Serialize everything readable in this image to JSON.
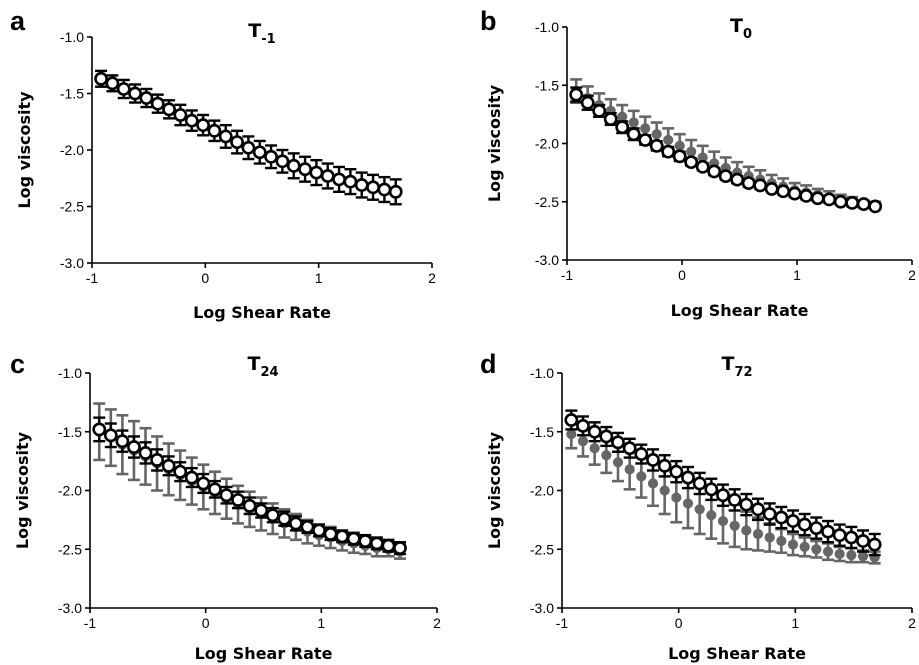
{
  "chart_data": [
    {
      "panel": "a",
      "type": "scatter",
      "title_main": "T",
      "title_sub": "-1",
      "xlabel": "Log Shear Rate",
      "ylabel": "Log viscosity",
      "xlim": [
        -1,
        2
      ],
      "ylim": [
        -3.0,
        -1.0
      ],
      "xticks": [
        "-1",
        "0",
        "1",
        "2"
      ],
      "yticks": [
        "-1.0",
        "-1.5",
        "-2.0",
        "-2.5",
        "-3.0"
      ],
      "x": [
        -0.92,
        -0.82,
        -0.72,
        -0.62,
        -0.52,
        -0.42,
        -0.32,
        -0.22,
        -0.12,
        -0.02,
        0.08,
        0.18,
        0.28,
        0.38,
        0.48,
        0.58,
        0.68,
        0.78,
        0.88,
        0.98,
        1.08,
        1.18,
        1.28,
        1.38,
        1.48,
        1.58,
        1.68
      ],
      "series": [
        {
          "color": "#000000",
          "marker": "open-circle",
          "values": [
            -1.37,
            -1.41,
            -1.46,
            -1.5,
            -1.54,
            -1.59,
            -1.64,
            -1.69,
            -1.74,
            -1.78,
            -1.83,
            -1.88,
            -1.93,
            -1.98,
            -2.02,
            -2.06,
            -2.1,
            -2.14,
            -2.17,
            -2.2,
            -2.23,
            -2.26,
            -2.28,
            -2.31,
            -2.33,
            -2.35,
            -2.37
          ],
          "errors": [
            0.07,
            0.07,
            0.08,
            0.08,
            0.08,
            0.08,
            0.08,
            0.09,
            0.09,
            0.09,
            0.09,
            0.1,
            0.1,
            0.1,
            0.1,
            0.1,
            0.1,
            0.11,
            0.11,
            0.11,
            0.11,
            0.11,
            0.11,
            0.11,
            0.11,
            0.11,
            0.11
          ]
        }
      ]
    },
    {
      "panel": "b",
      "type": "scatter",
      "title_main": "T",
      "title_sub": "0",
      "xlabel": "Log Shear Rate",
      "ylabel": "Log viscosity",
      "xlim": [
        -1,
        2
      ],
      "ylim": [
        -3.0,
        -1.0
      ],
      "xticks": [
        "-1",
        "0",
        "1",
        "2"
      ],
      "yticks": [
        "-1.0",
        "-1.5",
        "-2.0",
        "-2.5",
        "-3.0"
      ],
      "x": [
        -0.92,
        -0.82,
        -0.72,
        -0.62,
        -0.52,
        -0.42,
        -0.32,
        -0.22,
        -0.12,
        -0.02,
        0.08,
        0.18,
        0.28,
        0.38,
        0.48,
        0.58,
        0.68,
        0.78,
        0.88,
        0.98,
        1.08,
        1.18,
        1.28,
        1.38,
        1.48,
        1.58,
        1.68
      ],
      "series": [
        {
          "color": "#666666",
          "marker": "filled-circle",
          "values": [
            -1.55,
            -1.61,
            -1.67,
            -1.72,
            -1.77,
            -1.82,
            -1.87,
            -1.92,
            -1.97,
            -2.02,
            -2.07,
            -2.12,
            -2.17,
            -2.21,
            -2.25,
            -2.28,
            -2.31,
            -2.34,
            -2.37,
            -2.4,
            -2.42,
            -2.44,
            -2.46,
            -2.48,
            -2.5,
            -2.52,
            -2.53
          ],
          "errors": [
            0.1,
            0.1,
            0.1,
            0.1,
            0.1,
            0.1,
            0.1,
            0.1,
            0.1,
            0.1,
            0.1,
            0.1,
            0.1,
            0.09,
            0.09,
            0.08,
            0.08,
            0.07,
            0.07,
            0.06,
            0.06,
            0.05,
            0.05,
            0.04,
            0.04,
            0.03,
            0.03
          ]
        },
        {
          "color": "#000000",
          "marker": "open-circle",
          "values": [
            -1.58,
            -1.65,
            -1.72,
            -1.79,
            -1.86,
            -1.92,
            -1.97,
            -2.02,
            -2.07,
            -2.11,
            -2.16,
            -2.2,
            -2.24,
            -2.28,
            -2.31,
            -2.34,
            -2.36,
            -2.39,
            -2.41,
            -2.43,
            -2.45,
            -2.47,
            -2.48,
            -2.5,
            -2.51,
            -2.52,
            -2.54
          ],
          "errors": [
            0.06,
            0.06,
            0.05,
            0.05,
            0.05,
            0.05,
            0.04,
            0.04,
            0.04,
            0.04,
            0.03,
            0.03,
            0.03,
            0.03,
            0.03,
            0.03,
            0.02,
            0.02,
            0.02,
            0.02,
            0.02,
            0.02,
            0.02,
            0.02,
            0.02,
            0.02,
            0.02
          ]
        }
      ]
    },
    {
      "panel": "c",
      "type": "scatter",
      "title_main": "T",
      "title_sub": "24",
      "xlabel": "Log Shear Rate",
      "ylabel": "Log viscosity",
      "xlim": [
        -1,
        2
      ],
      "ylim": [
        -3.0,
        -1.0
      ],
      "xticks": [
        "-1",
        "0",
        "1",
        "2"
      ],
      "yticks": [
        "-1.0",
        "-1.5",
        "-2.0",
        "-2.5",
        "-3.0"
      ],
      "x": [
        -0.92,
        -0.82,
        -0.72,
        -0.62,
        -0.52,
        -0.42,
        -0.32,
        -0.22,
        -0.12,
        -0.02,
        0.08,
        0.18,
        0.28,
        0.38,
        0.48,
        0.58,
        0.68,
        0.78,
        0.88,
        0.98,
        1.08,
        1.18,
        1.28,
        1.38,
        1.48,
        1.58,
        1.68
      ],
      "series": [
        {
          "color": "#666666",
          "marker": "filled-circle",
          "values": [
            -1.5,
            -1.55,
            -1.61,
            -1.66,
            -1.71,
            -1.77,
            -1.82,
            -1.87,
            -1.92,
            -1.97,
            -2.02,
            -2.07,
            -2.12,
            -2.16,
            -2.2,
            -2.24,
            -2.28,
            -2.31,
            -2.35,
            -2.38,
            -2.4,
            -2.43,
            -2.45,
            -2.47,
            -2.49,
            -2.5,
            -2.52
          ],
          "errors": [
            0.24,
            0.24,
            0.25,
            0.25,
            0.24,
            0.23,
            0.22,
            0.21,
            0.2,
            0.19,
            0.18,
            0.17,
            0.16,
            0.15,
            0.14,
            0.13,
            0.12,
            0.11,
            0.1,
            0.09,
            0.09,
            0.08,
            0.08,
            0.07,
            0.07,
            0.06,
            0.06
          ]
        },
        {
          "color": "#000000",
          "marker": "open-circle",
          "values": [
            -1.48,
            -1.53,
            -1.58,
            -1.63,
            -1.68,
            -1.74,
            -1.79,
            -1.84,
            -1.89,
            -1.94,
            -1.99,
            -2.04,
            -2.08,
            -2.13,
            -2.17,
            -2.21,
            -2.24,
            -2.28,
            -2.31,
            -2.34,
            -2.37,
            -2.39,
            -2.41,
            -2.43,
            -2.45,
            -2.47,
            -2.49
          ],
          "errors": [
            0.1,
            0.1,
            0.09,
            0.09,
            0.09,
            0.09,
            0.08,
            0.08,
            0.08,
            0.08,
            0.07,
            0.07,
            0.07,
            0.07,
            0.06,
            0.06,
            0.06,
            0.06,
            0.05,
            0.05,
            0.05,
            0.05,
            0.05,
            0.05,
            0.05,
            0.05,
            0.05
          ]
        }
      ]
    },
    {
      "panel": "d",
      "type": "scatter",
      "title_main": "T",
      "title_sub": "72",
      "xlabel": "Log Shear Rate",
      "ylabel": "Log viscosity",
      "xlim": [
        -1,
        2
      ],
      "ylim": [
        -3.0,
        -1.0
      ],
      "xticks": [
        "-1",
        "0",
        "1",
        "2"
      ],
      "yticks": [
        "-1.0",
        "-1.5",
        "-2.0",
        "-2.5",
        "-3.0"
      ],
      "x": [
        -0.92,
        -0.82,
        -0.72,
        -0.62,
        -0.52,
        -0.42,
        -0.32,
        -0.22,
        -0.12,
        -0.02,
        0.08,
        0.18,
        0.28,
        0.38,
        0.48,
        0.58,
        0.68,
        0.78,
        0.88,
        0.98,
        1.08,
        1.18,
        1.28,
        1.38,
        1.48,
        1.58,
        1.68
      ],
      "series": [
        {
          "color": "#666666",
          "marker": "filled-circle",
          "values": [
            -1.52,
            -1.58,
            -1.64,
            -1.7,
            -1.76,
            -1.82,
            -1.88,
            -1.94,
            -2.0,
            -2.06,
            -2.11,
            -2.16,
            -2.21,
            -2.26,
            -2.3,
            -2.34,
            -2.37,
            -2.4,
            -2.43,
            -2.46,
            -2.48,
            -2.5,
            -2.52,
            -2.54,
            -2.55,
            -2.56,
            -2.57
          ],
          "errors": [
            0.12,
            0.13,
            0.14,
            0.15,
            0.16,
            0.17,
            0.18,
            0.19,
            0.2,
            0.21,
            0.21,
            0.21,
            0.2,
            0.19,
            0.18,
            0.16,
            0.14,
            0.12,
            0.1,
            0.09,
            0.08,
            0.07,
            0.07,
            0.06,
            0.06,
            0.05,
            0.05
          ]
        },
        {
          "color": "#000000",
          "marker": "open-circle",
          "values": [
            -1.4,
            -1.45,
            -1.5,
            -1.54,
            -1.59,
            -1.64,
            -1.69,
            -1.74,
            -1.79,
            -1.84,
            -1.89,
            -1.94,
            -1.99,
            -2.04,
            -2.08,
            -2.12,
            -2.16,
            -2.2,
            -2.23,
            -2.26,
            -2.29,
            -2.32,
            -2.35,
            -2.38,
            -2.4,
            -2.43,
            -2.46
          ],
          "errors": [
            0.08,
            0.08,
            0.08,
            0.08,
            0.08,
            0.08,
            0.08,
            0.09,
            0.09,
            0.09,
            0.09,
            0.09,
            0.09,
            0.09,
            0.09,
            0.09,
            0.09,
            0.09,
            0.09,
            0.09,
            0.09,
            0.09,
            0.09,
            0.09,
            0.09,
            0.09,
            0.09
          ]
        }
      ]
    }
  ]
}
